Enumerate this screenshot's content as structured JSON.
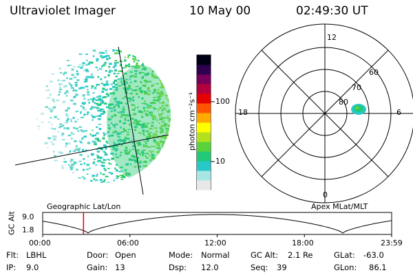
{
  "header": {
    "instrument": "Ultraviolet Imager",
    "date": "10 May 00",
    "time": "02:49:30 UT"
  },
  "earth_image": {
    "caption": "Geographic Lat/Lon"
  },
  "colorbar": {
    "label": "photon cm⁻²s⁻¹",
    "ticks": [
      "100",
      "10"
    ],
    "scale": "log",
    "colors": [
      "#e8e8e8",
      "#a8e6e6",
      "#28c8c8",
      "#20c878",
      "#5ad23c",
      "#b4e11e",
      "#ffff00",
      "#ffaa00",
      "#ff5500",
      "#e60000",
      "#b4003c",
      "#78005a",
      "#300050",
      "#000014"
    ]
  },
  "polar_plot": {
    "caption": "Apex MLat/MLT",
    "mlt_labels": {
      "top": "12",
      "left": "18",
      "right": "6",
      "bottom": "0"
    },
    "lat_labels": [
      "60",
      "70",
      "80"
    ]
  },
  "altitude_plot": {
    "ylabel": "GC Alt",
    "yticks": [
      "9.0",
      "1.8"
    ],
    "xticks": [
      "00:00",
      "06:00",
      "12:00",
      "18:00",
      "23:59"
    ],
    "current_time_fraction": 0.117
  },
  "info": [
    {
      "label": "Flt:",
      "value": "LBHL"
    },
    {
      "label": "IP:",
      "value": "9.0"
    },
    {
      "label": "Door:",
      "value": "Open"
    },
    {
      "label": "Gain:",
      "value": "13"
    },
    {
      "label": "Mode:",
      "value": "Normal"
    },
    {
      "label": "Dsp:",
      "value": "12.0"
    },
    {
      "label": "GC Alt:",
      "value": "2.1 Re"
    },
    {
      "label": "Seq:",
      "value": "39"
    },
    {
      "label": "GLat:",
      "value": "-63.0"
    },
    {
      "label": "GLon:",
      "value": "86.1"
    }
  ],
  "palette": {
    "aurora_core": "#20c878",
    "aurora_edge": "#28c8c8",
    "marker": "#e60000"
  }
}
